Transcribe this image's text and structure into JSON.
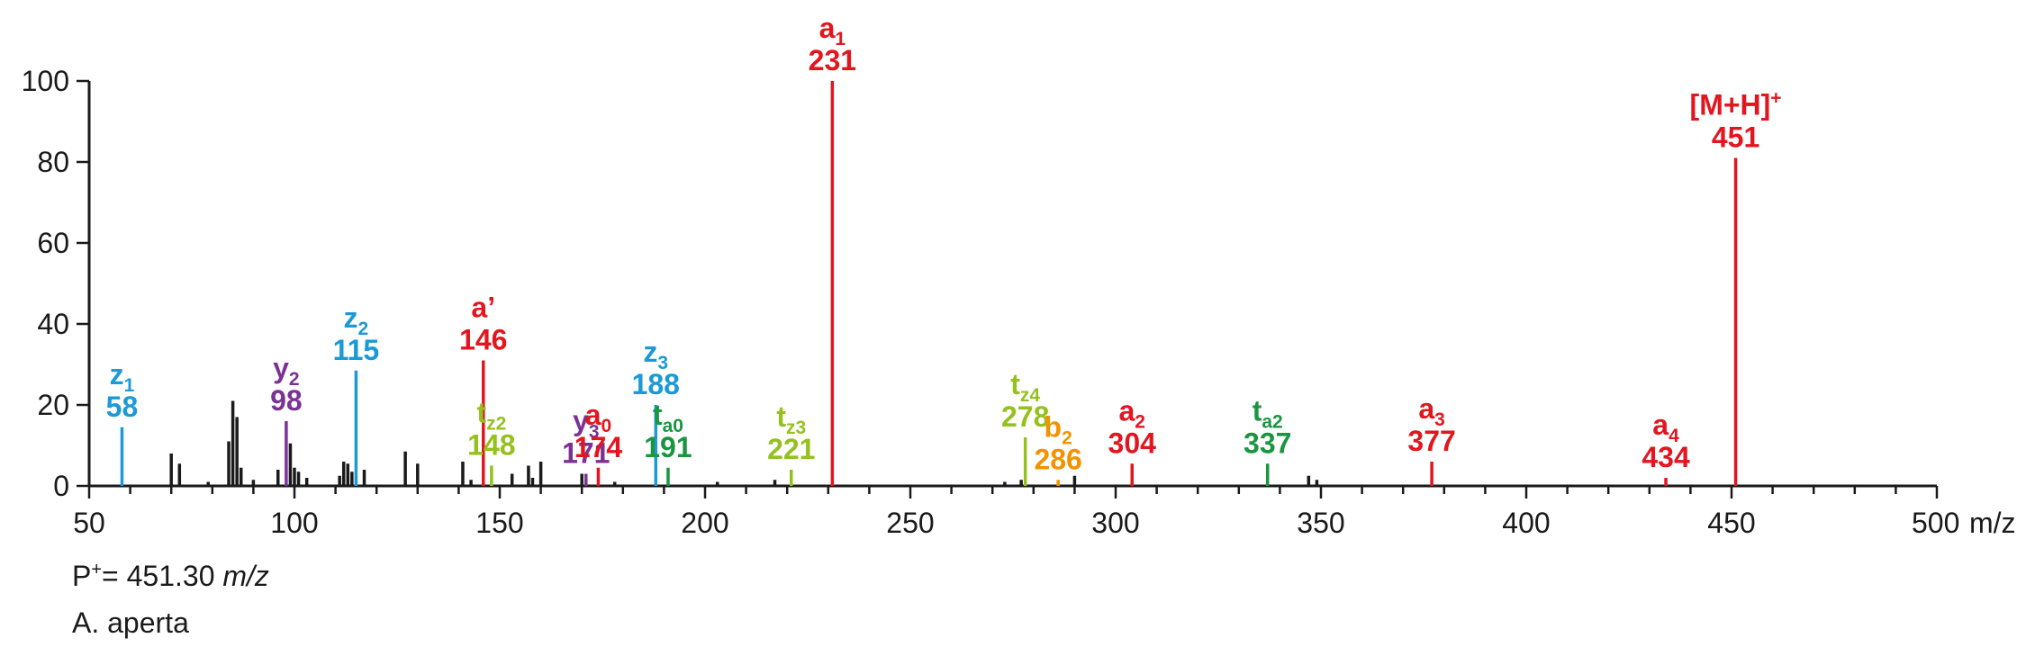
{
  "chart_data": {
    "type": "bar",
    "xlabel": "m/z",
    "xlim": [
      50,
      500
    ],
    "ylim": [
      0,
      100
    ],
    "x_ticks": [
      "50",
      "100",
      "150",
      "200",
      "250",
      "300",
      "350",
      "400",
      "450",
      "500"
    ],
    "y_ticks": [
      "0",
      "20",
      "40",
      "60",
      "80",
      "100"
    ],
    "colors": {
      "axis": "#1a1a1a",
      "unassigned": "#1a1a1a",
      "a_series": "#e3161f",
      "z_series": "#1b9ad6",
      "y_series": "#7b3294",
      "ta_series": "#1a9641",
      "tz_series": "#95c11f",
      "b_series": "#f39200"
    },
    "background_peaks": {
      "x": [
        70,
        72,
        79,
        84,
        85,
        86,
        87,
        90,
        96,
        99,
        100,
        101,
        103,
        111,
        112,
        113,
        114,
        117,
        127,
        130,
        141,
        143,
        153,
        157,
        158,
        160,
        170,
        178,
        203,
        217,
        273,
        277,
        290,
        347,
        349
      ],
      "y": [
        8,
        5.5,
        1,
        11,
        21,
        17,
        4.5,
        1.5,
        4,
        10.5,
        4.5,
        3.5,
        2,
        2.5,
        6,
        5.5,
        3.5,
        4,
        8.5,
        5.5,
        6,
        1.5,
        3,
        5,
        2,
        6,
        3,
        1,
        1,
        1.5,
        1,
        1.5,
        2.5,
        2.5,
        1.5
      ]
    },
    "annotated_peaks": [
      {
        "x": 58,
        "y": 14.5,
        "series": "z_series",
        "ion": "z",
        "sub": "1",
        "mass": "58"
      },
      {
        "x": 98,
        "y": 16,
        "series": "y_series",
        "ion": "y",
        "sub": "2",
        "mass": "98"
      },
      {
        "x": 115,
        "y": 28.5,
        "series": "z_series",
        "ion": "z",
        "sub": "2",
        "mass": "115"
      },
      {
        "x": 146,
        "y": 31,
        "series": "a_series",
        "ion": "a’",
        "sub": "",
        "mass": "146"
      },
      {
        "x": 148,
        "y": 5,
        "series": "tz_series",
        "ion": "t",
        "sub": "z2",
        "mass": "148"
      },
      {
        "x": 171,
        "y": 3,
        "series": "y_series",
        "ion": "y",
        "sub": "3",
        "mass": "171"
      },
      {
        "x": 174,
        "y": 4.5,
        "series": "a_series",
        "ion": "a",
        "sub": "0",
        "mass": "174"
      },
      {
        "x": 188,
        "y": 20,
        "series": "z_series",
        "ion": "z",
        "sub": "3",
        "mass": "188"
      },
      {
        "x": 191,
        "y": 4.5,
        "series": "ta_series",
        "ion": "t",
        "sub": "a0",
        "mass": "191"
      },
      {
        "x": 221,
        "y": 4,
        "series": "tz_series",
        "ion": "t",
        "sub": "z3",
        "mass": "221"
      },
      {
        "x": 231,
        "y": 100,
        "series": "a_series",
        "ion": "a",
        "sub": "1",
        "mass": "231"
      },
      {
        "x": 278,
        "y": 12,
        "series": "tz_series",
        "ion": "t",
        "sub": "z4",
        "mass": "278"
      },
      {
        "x": 286,
        "y": 1.5,
        "series": "b_series",
        "ion": "b",
        "sub": "2",
        "mass": "286"
      },
      {
        "x": 304,
        "y": 5.5,
        "series": "a_series",
        "ion": "a",
        "sub": "2",
        "mass": "304"
      },
      {
        "x": 337,
        "y": 5.5,
        "series": "ta_series",
        "ion": "t",
        "sub": "a2",
        "mass": "337"
      },
      {
        "x": 377,
        "y": 6,
        "series": "a_series",
        "ion": "a",
        "sub": "3",
        "mass": "377"
      },
      {
        "x": 434,
        "y": 2,
        "series": "a_series",
        "ion": "a",
        "sub": "4",
        "mass": "434"
      },
      {
        "x": 451,
        "y": 81,
        "series": "a_series",
        "ion": "[M+H]",
        "sub": "",
        "sup": "+",
        "mass": "451"
      }
    ]
  },
  "caption": {
    "precursor_prefix": "P",
    "precursor_charge": "+",
    "precursor_value": "= 451.30 ",
    "precursor_unit": "m/z",
    "species": "A. aperta"
  }
}
